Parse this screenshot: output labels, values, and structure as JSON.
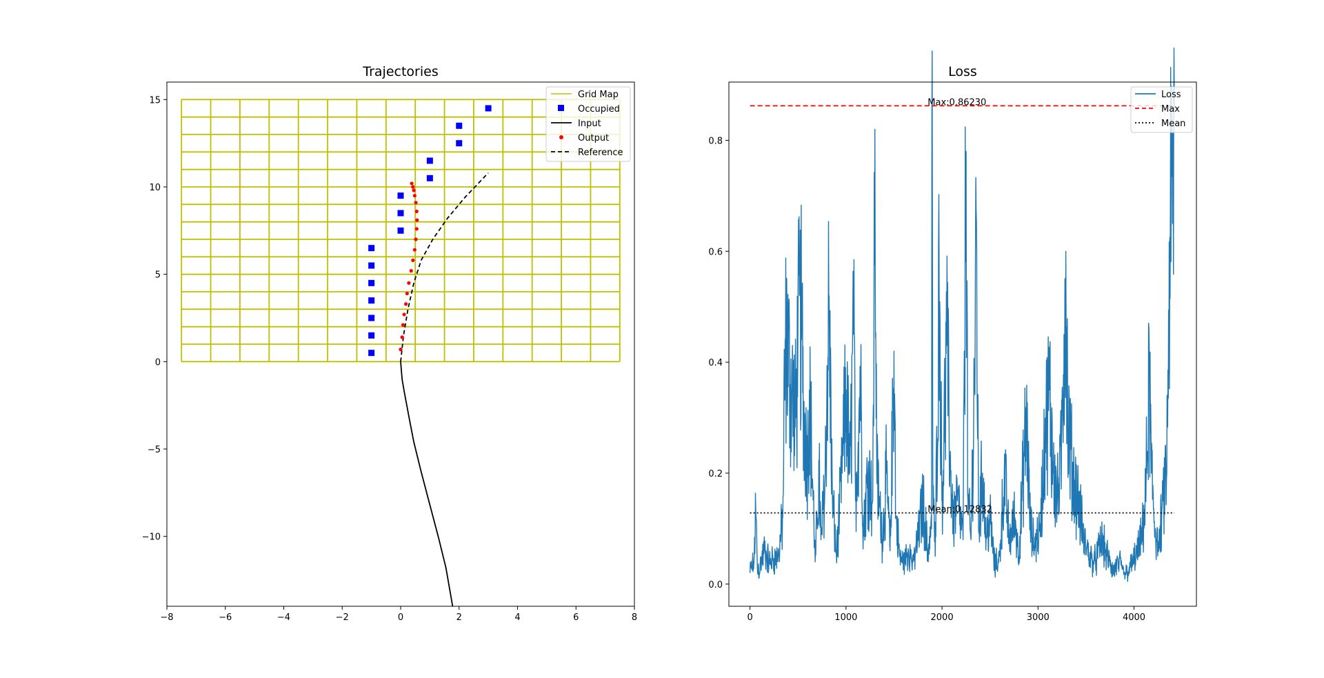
{
  "chart_data": [
    {
      "type": "scatter",
      "title": "Trajectories",
      "xlabel": "",
      "ylabel": "",
      "xlim": [
        -8,
        8
      ],
      "ylim": [
        -14,
        16
      ],
      "xticks": [
        "−8",
        "−6",
        "−4",
        "−2",
        "0",
        "2",
        "4",
        "6",
        "8"
      ],
      "xtick_values": [
        -8,
        -6,
        -4,
        -2,
        0,
        2,
        4,
        6,
        8
      ],
      "yticks": [
        "−10",
        "−5",
        "0",
        "5",
        "10",
        "15"
      ],
      "ytick_values": [
        -10,
        -5,
        0,
        5,
        10,
        15
      ],
      "grid": false,
      "legend_position": "upper right",
      "legend": [
        "Grid Map",
        "Occupied",
        "Input",
        "Output",
        "Reference"
      ],
      "grid_map": {
        "x_edges": [
          -7.5,
          -6.5,
          -5.5,
          -4.5,
          -3.5,
          -2.5,
          -1.5,
          -0.5,
          0.5,
          1.5,
          2.5,
          3.5,
          4.5,
          5.5,
          6.5,
          7.5
        ],
        "y_edges": [
          0,
          1,
          2,
          3,
          4,
          5,
          6,
          7,
          8,
          9,
          10,
          11,
          12,
          13,
          14,
          15
        ],
        "color": "#bfbf00"
      },
      "occupied": {
        "color": "#0000ff",
        "points": [
          [
            -1,
            0.5
          ],
          [
            -1,
            1.5
          ],
          [
            -1,
            2.5
          ],
          [
            -1,
            3.5
          ],
          [
            -1,
            4.5
          ],
          [
            -1,
            5.5
          ],
          [
            -1,
            6.5
          ],
          [
            0,
            7.5
          ],
          [
            0,
            8.5
          ],
          [
            0,
            9.5
          ],
          [
            1,
            10.5
          ],
          [
            1,
            11.5
          ],
          [
            2,
            12.5
          ],
          [
            2,
            13.5
          ],
          [
            3,
            14.5
          ]
        ]
      },
      "input": {
        "color": "#000000",
        "points": [
          [
            0,
            0
          ],
          [
            0.05,
            -1
          ],
          [
            0.12,
            -1.7
          ],
          [
            0.3,
            -3.3
          ],
          [
            0.45,
            -4.6
          ],
          [
            0.7,
            -6.3
          ],
          [
            1.0,
            -8.2
          ],
          [
            1.3,
            -10.1
          ],
          [
            1.55,
            -11.8
          ],
          [
            1.78,
            -14
          ]
        ]
      },
      "output": {
        "color": "#ff0000",
        "points": [
          [
            0,
            0.7
          ],
          [
            0.05,
            1.4
          ],
          [
            0.08,
            2.1
          ],
          [
            0.12,
            2.7
          ],
          [
            0.18,
            3.3
          ],
          [
            0.22,
            3.9
          ],
          [
            0.28,
            4.5
          ],
          [
            0.36,
            5.2
          ],
          [
            0.42,
            5.8
          ],
          [
            0.48,
            6.4
          ],
          [
            0.52,
            7.0
          ],
          [
            0.55,
            7.6
          ],
          [
            0.56,
            8.1
          ],
          [
            0.55,
            8.6
          ],
          [
            0.52,
            9.1
          ],
          [
            0.48,
            9.5
          ],
          [
            0.45,
            9.8
          ],
          [
            0.42,
            10.0
          ],
          [
            0.38,
            10.2
          ]
        ]
      },
      "reference": {
        "color": "#000000",
        "points": [
          [
            0,
            0
          ],
          [
            0.1,
            1.5
          ],
          [
            0.25,
            3.0
          ],
          [
            0.45,
            4.5
          ],
          [
            0.7,
            5.8
          ],
          [
            1.1,
            7.0
          ],
          [
            1.6,
            8.2
          ],
          [
            2.2,
            9.4
          ],
          [
            3.0,
            10.8
          ]
        ]
      }
    },
    {
      "type": "line",
      "title": "Loss",
      "xlabel": "",
      "ylabel": "",
      "xlim": [
        -220,
        4650
      ],
      "ylim": [
        -0.04,
        0.905
      ],
      "xticks": [
        "0",
        "1000",
        "2000",
        "3000",
        "4000"
      ],
      "xtick_values": [
        0,
        1000,
        2000,
        3000,
        4000
      ],
      "yticks": [
        "0.0",
        "0.2",
        "0.4",
        "0.6",
        "0.8"
      ],
      "ytick_values": [
        0,
        0.2,
        0.4,
        0.6,
        0.8
      ],
      "grid": false,
      "legend_position": "upper right",
      "legend": [
        "Loss",
        "Max",
        "Mean"
      ],
      "series_color": "#1f77b4",
      "max_value": 0.8623,
      "max_label": "Max:0.86230",
      "max_color": "#ff0000",
      "mean_value": 0.12832,
      "mean_label": "Mean:0.12832",
      "mean_color": "#000000",
      "x_range": [
        0,
        4420
      ],
      "profile": [
        [
          0,
          0.02
        ],
        [
          40,
          0.04
        ],
        [
          60,
          0.13
        ],
        [
          80,
          0.02
        ],
        [
          150,
          0.06
        ],
        [
          200,
          0.04
        ],
        [
          300,
          0.05
        ],
        [
          340,
          0.12
        ],
        [
          360,
          0.38
        ],
        [
          380,
          0.45
        ],
        [
          420,
          0.36
        ],
        [
          480,
          0.3
        ],
        [
          500,
          0.45
        ],
        [
          540,
          0.48
        ],
        [
          560,
          0.3
        ],
        [
          600,
          0.22
        ],
        [
          620,
          0.35
        ],
        [
          680,
          0.04
        ],
        [
          720,
          0.2
        ],
        [
          740,
          0.08
        ],
        [
          780,
          0.18
        ],
        [
          820,
          0.5
        ],
        [
          860,
          0.15
        ],
        [
          900,
          0.05
        ],
        [
          960,
          0.2
        ],
        [
          1000,
          0.35
        ],
        [
          1040,
          0.2
        ],
        [
          1080,
          0.45
        ],
        [
          1100,
          0.15
        ],
        [
          1150,
          0.38
        ],
        [
          1180,
          0.1
        ],
        [
          1230,
          0.2
        ],
        [
          1280,
          0.15
        ],
        [
          1300,
          0.82
        ],
        [
          1320,
          0.2
        ],
        [
          1380,
          0.08
        ],
        [
          1420,
          0.2
        ],
        [
          1460,
          0.06
        ],
        [
          1500,
          0.42
        ],
        [
          1520,
          0.12
        ],
        [
          1560,
          0.05
        ],
        [
          1600,
          0.04
        ],
        [
          1650,
          0.06
        ],
        [
          1700,
          0.04
        ],
        [
          1750,
          0.08
        ],
        [
          1800,
          0.15
        ],
        [
          1850,
          0.06
        ],
        [
          1890,
          0.1
        ],
        [
          1895,
          0.8623
        ],
        [
          1905,
          0.2
        ],
        [
          1930,
          0.05
        ],
        [
          1970,
          0.55
        ],
        [
          2000,
          0.15
        ],
        [
          2050,
          0.43
        ],
        [
          2090,
          0.2
        ],
        [
          2120,
          0.12
        ],
        [
          2160,
          0.15
        ],
        [
          2220,
          0.08
        ],
        [
          2250,
          0.78
        ],
        [
          2270,
          0.15
        ],
        [
          2300,
          0.08
        ],
        [
          2330,
          0.3
        ],
        [
          2360,
          0.6
        ],
        [
          2380,
          0.1
        ],
        [
          2420,
          0.2
        ],
        [
          2460,
          0.08
        ],
        [
          2500,
          0.12
        ],
        [
          2550,
          0.03
        ],
        [
          2600,
          0.05
        ],
        [
          2650,
          0.2
        ],
        [
          2700,
          0.08
        ],
        [
          2760,
          0.12
        ],
        [
          2800,
          0.05
        ],
        [
          2840,
          0.18
        ],
        [
          2880,
          0.3
        ],
        [
          2920,
          0.1
        ],
        [
          2960,
          0.07
        ],
        [
          3020,
          0.1
        ],
        [
          3080,
          0.28
        ],
        [
          3120,
          0.35
        ],
        [
          3160,
          0.2
        ],
        [
          3200,
          0.15
        ],
        [
          3240,
          0.22
        ],
        [
          3270,
          0.45
        ],
        [
          3290,
          0.6
        ],
        [
          3310,
          0.3
        ],
        [
          3360,
          0.2
        ],
        [
          3420,
          0.15
        ],
        [
          3480,
          0.08
        ],
        [
          3540,
          0.05
        ],
        [
          3600,
          0.04
        ],
        [
          3660,
          0.08
        ],
        [
          3720,
          0.05
        ],
        [
          3780,
          0.02
        ],
        [
          3840,
          0.04
        ],
        [
          3900,
          0.02
        ],
        [
          3960,
          0.03
        ],
        [
          4020,
          0.05
        ],
        [
          4080,
          0.08
        ],
        [
          4120,
          0.15
        ],
        [
          4160,
          0.38
        ],
        [
          4180,
          0.2
        ],
        [
          4220,
          0.1
        ],
        [
          4260,
          0.06
        ],
        [
          4300,
          0.15
        ],
        [
          4340,
          0.2
        ],
        [
          4380,
          0.7
        ],
        [
          4400,
          0.65
        ],
        [
          4420,
          0.85
        ]
      ]
    }
  ]
}
